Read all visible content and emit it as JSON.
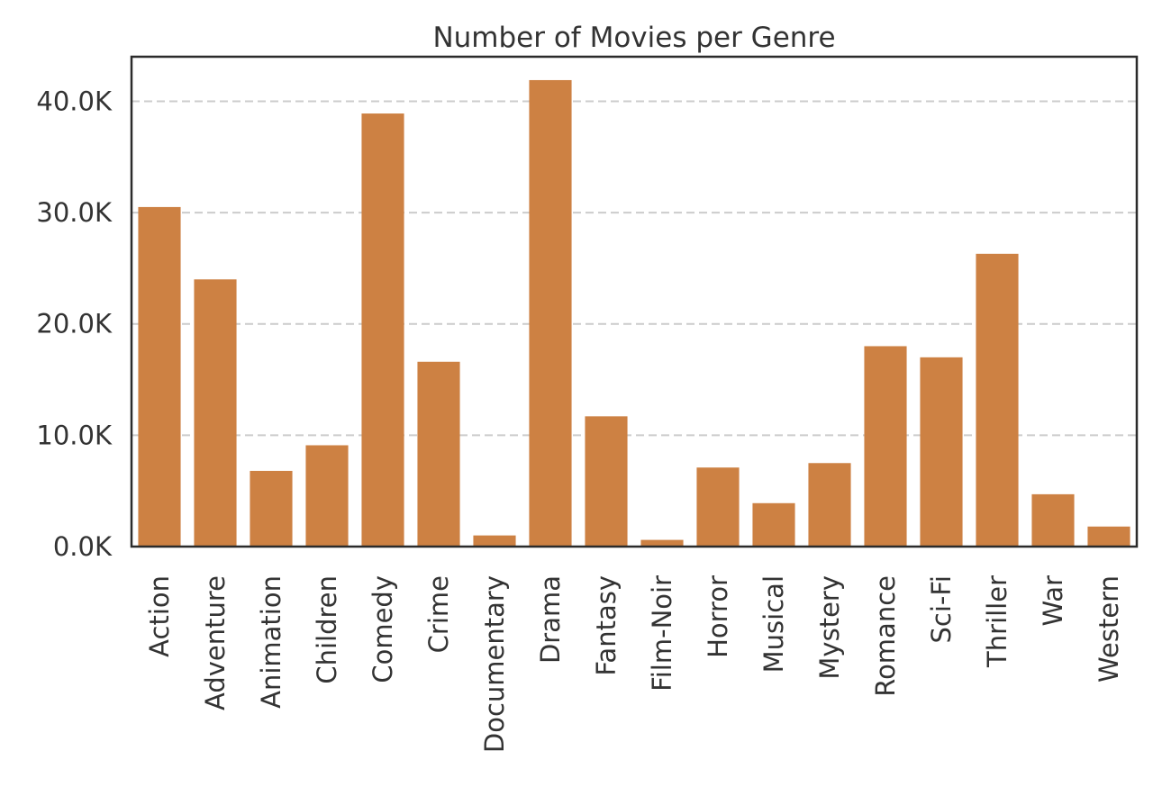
{
  "chart_data": {
    "type": "bar",
    "title": "Number of Movies per Genre",
    "xlabel": "",
    "ylabel": "",
    "categories": [
      "Action",
      "Adventure",
      "Animation",
      "Children",
      "Comedy",
      "Crime",
      "Documentary",
      "Drama",
      "Fantasy",
      "Film-Noir",
      "Horror",
      "Musical",
      "Mystery",
      "Romance",
      "Sci-Fi",
      "Thriller",
      "War",
      "Western"
    ],
    "values": [
      30500,
      24000,
      6800,
      9100,
      38900,
      16600,
      1000,
      41900,
      11700,
      600,
      7100,
      3900,
      7500,
      18000,
      17000,
      26300,
      4700,
      1800
    ],
    "ylim": [
      0,
      44000
    ],
    "yticks": [
      0,
      10000,
      20000,
      30000,
      40000
    ],
    "ytick_labels": [
      "0.0K",
      "10.0K",
      "20.0K",
      "30.0K",
      "40.0K"
    ],
    "grid": "horizontal dashed",
    "bar_color": "#cd8143",
    "legend": "none"
  }
}
